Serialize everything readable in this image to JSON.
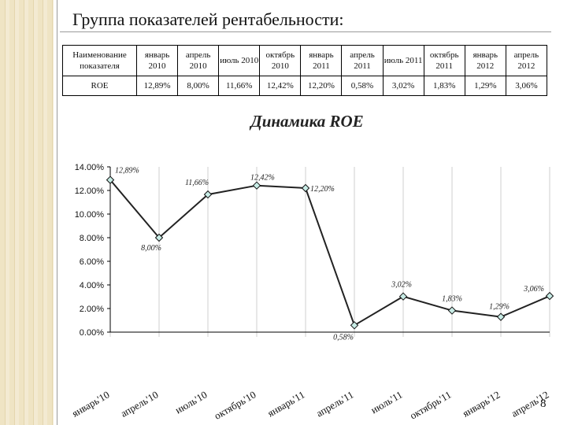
{
  "page": {
    "title": "Группа показателей рентабельности:",
    "page_number": "8"
  },
  "table": {
    "header_label": "Наименование показателя",
    "columns": [
      "январь 2010",
      "апрель 2010",
      "июль 2010",
      "октябрь 2010",
      "январь 2011",
      "апрель 2011",
      "июль 2011",
      "октябрь 2011",
      "январь 2012",
      "апрель 2012"
    ],
    "row_label": "ROE",
    "values": [
      "12,89%",
      "8,00%",
      "11,66%",
      "12,42%",
      "12,20%",
      "0,58%",
      "3,02%",
      "1,83%",
      "1,29%",
      "3,06%"
    ]
  },
  "chart_data": {
    "type": "line",
    "title": "Динамика ROE",
    "categories": [
      "январь'10",
      "апрель'10",
      "июль'10",
      "октябрь'10",
      "январь'11",
      "апрель'11",
      "июль'11",
      "октябрь'11",
      "январь'12",
      "апрель'12"
    ],
    "values": [
      12.89,
      8.0,
      11.66,
      12.42,
      12.2,
      0.58,
      3.02,
      1.83,
      1.29,
      3.06
    ],
    "data_labels": [
      "12,89%",
      "8,00%",
      "11,66%",
      "12,42%",
      "12,20%",
      "0,58%",
      "3,02%",
      "1,83%",
      "1,29%",
      "3,06%"
    ],
    "yticks": [
      "0.00%",
      "2.00%",
      "4.00%",
      "6.00%",
      "8.00%",
      "10.00%",
      "12.00%",
      "14.00%"
    ],
    "ylim": [
      0,
      14
    ],
    "grid": "vertical",
    "colors": {
      "line": "#222222",
      "marker_fill": "#c8ece6",
      "grid": "#cfcfcf"
    }
  }
}
